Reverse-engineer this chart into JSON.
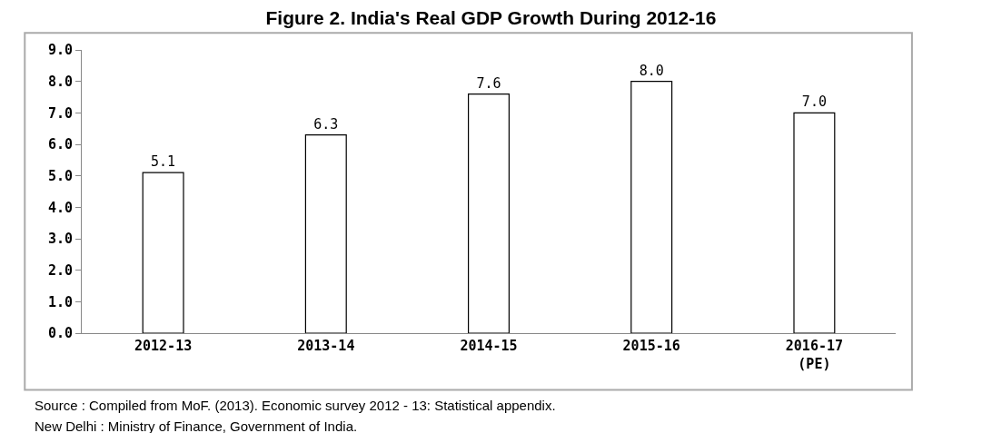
{
  "chart_data": {
    "type": "bar",
    "title": "Figure 2. India's Real GDP Growth During 2012-16",
    "categories": [
      "2012-13",
      "2013-14",
      "2014-15",
      "2015-16",
      "2016-17\n(PE)"
    ],
    "values": [
      5.1,
      6.3,
      7.6,
      8.0,
      7.0
    ],
    "value_labels": [
      "5.1",
      "6.3",
      "7.6",
      "8.0",
      "7.0"
    ],
    "color": "#ffffff",
    "ylim": [
      0,
      9
    ],
    "yticks": [
      {
        "value": 0,
        "label": "0.0"
      },
      {
        "value": 1,
        "label": "1.0"
      },
      {
        "value": 2,
        "label": "2.0"
      },
      {
        "value": 3,
        "label": "3.0"
      },
      {
        "value": 4,
        "label": "4.0"
      },
      {
        "value": 5,
        "label": "5.0"
      },
      {
        "value": 6,
        "label": "6.0"
      },
      {
        "value": 7,
        "label": "7.0"
      },
      {
        "value": 8,
        "label": "8.0"
      },
      {
        "value": 9,
        "label": "9.0"
      }
    ],
    "grid": false,
    "legend": false,
    "annotations": [
      "Source : Compiled from MoF. (2013). Economic survey 2012 - 13: Statistical appendix.",
      "New Delhi : Ministry of Finance, Government of India."
    ]
  }
}
